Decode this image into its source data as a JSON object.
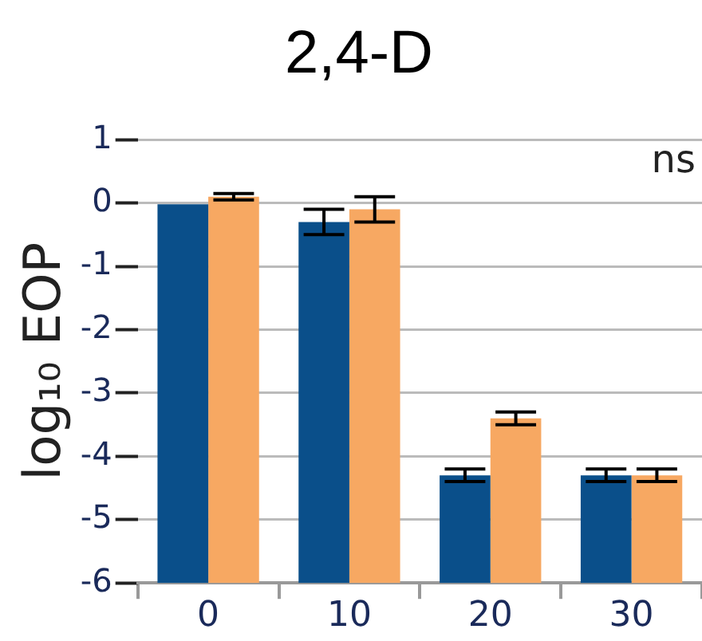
{
  "chart_data": {
    "type": "bar",
    "title": "2,4-D",
    "ylabel": "log₁₀ EOP",
    "categories": [
      "0",
      "10",
      "20",
      "30"
    ],
    "series": [
      {
        "color": "#0a4f8a",
        "base": [
          -6,
          -6,
          -6,
          -6
        ],
        "values": [
          6,
          5.7,
          1.7,
          1.7
        ],
        "errors": [
          null,
          0.2,
          0.1,
          0.1
        ]
      },
      {
        "color": "#f7a862",
        "base": [
          -6,
          -6,
          -6,
          -6
        ],
        "values": [
          6.1,
          5.9,
          2.6,
          1.7
        ],
        "errors": [
          0.05,
          0.2,
          0.1,
          0.1
        ]
      }
    ],
    "ylim": [
      -6,
      1
    ],
    "yticks": [
      1,
      0,
      -1,
      -2,
      -3,
      -4,
      -5,
      -6
    ],
    "grid": "y",
    "legend": false,
    "annotations": [
      "ns"
    ]
  }
}
